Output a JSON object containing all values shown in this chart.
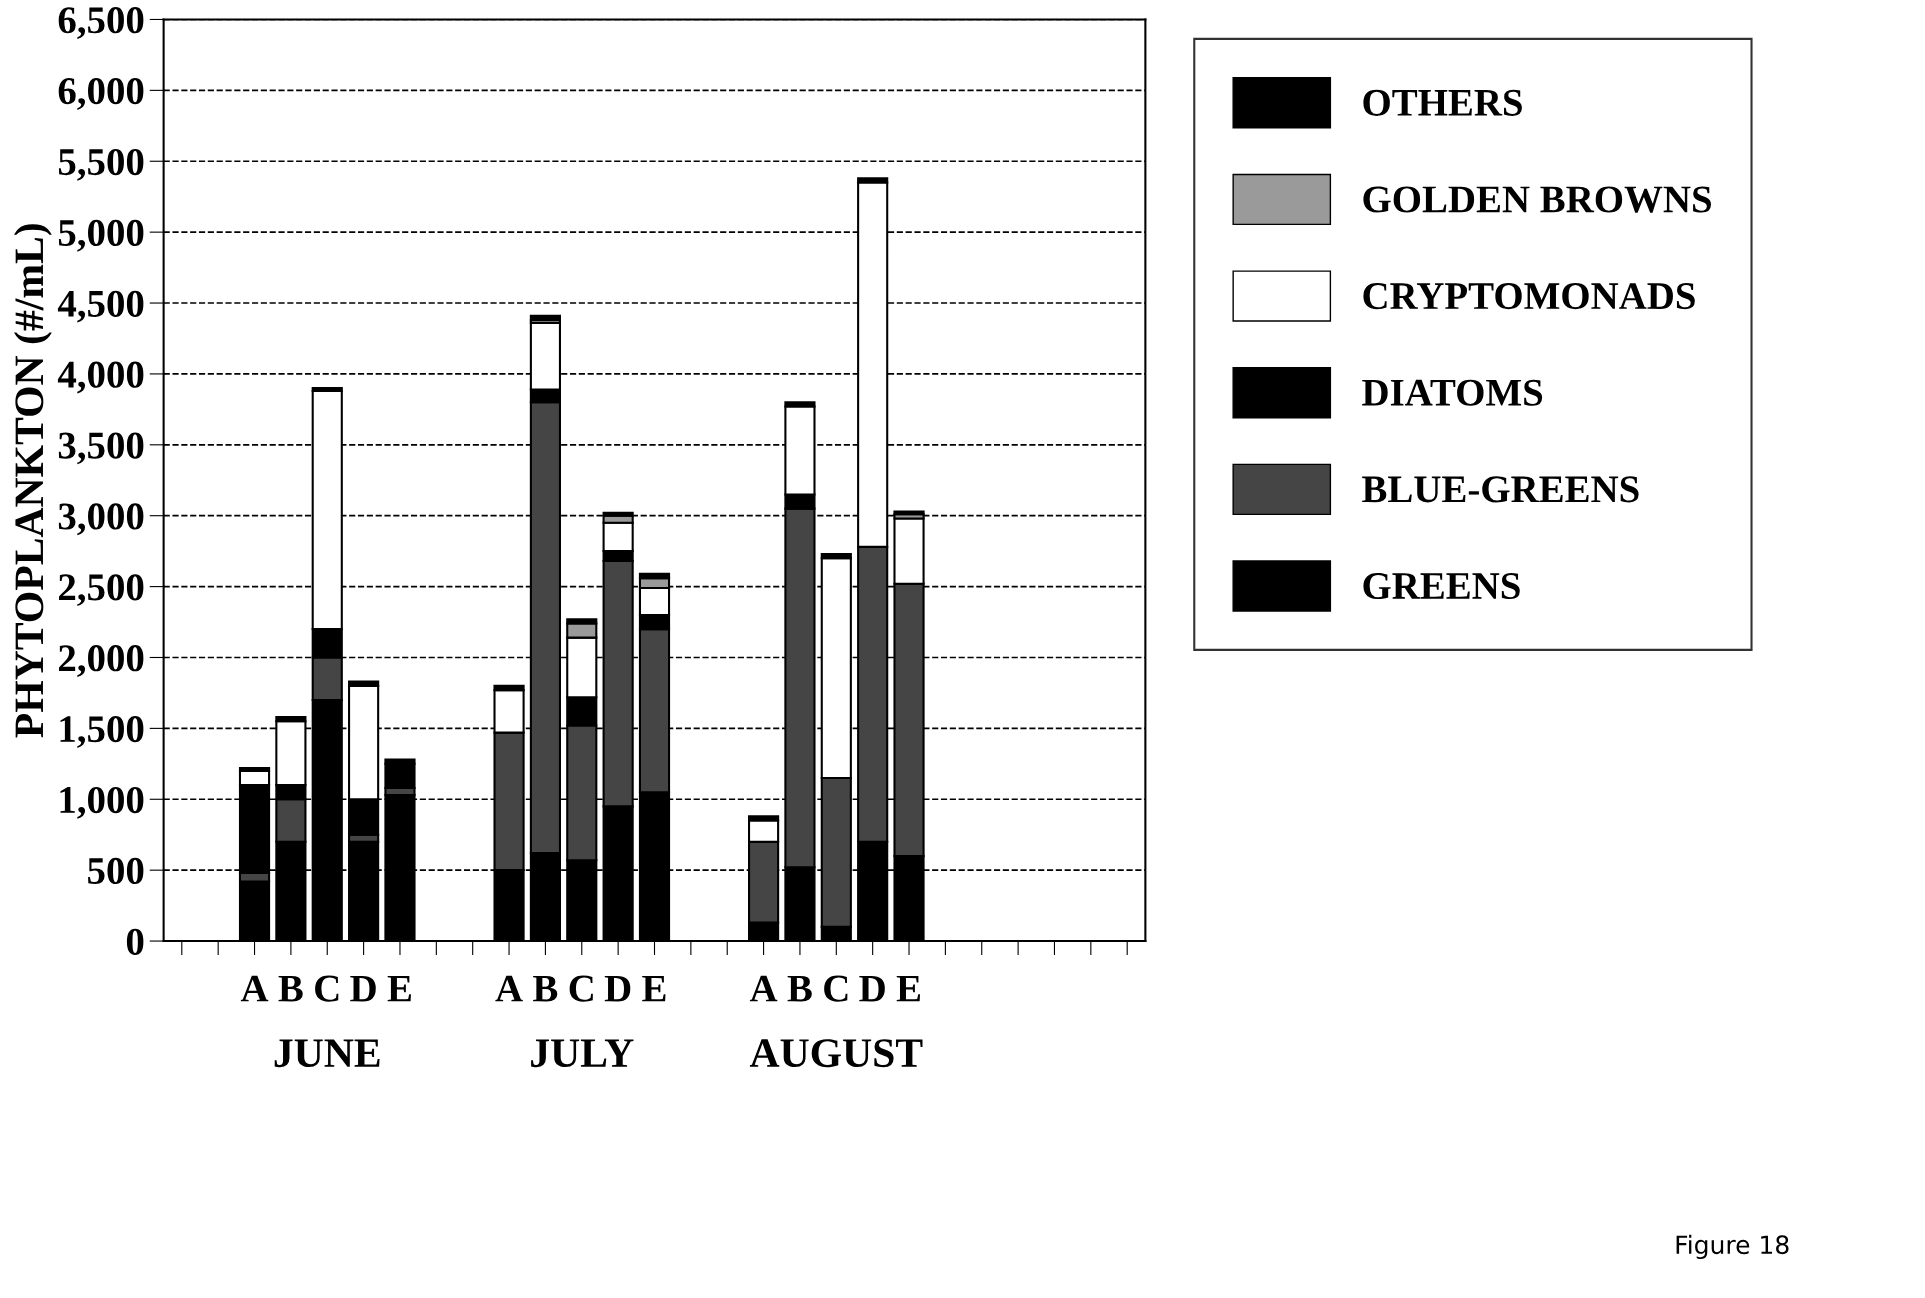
{
  "chart_data": {
    "type": "bar",
    "stacked": true,
    "ylabel": "PHYTOPLANKTON (#/mL)",
    "categories": [
      null,
      null,
      "A",
      "B",
      "C",
      "D",
      "E",
      null,
      null,
      "A",
      "B",
      "C",
      "D",
      "E",
      null,
      null,
      "A",
      "B",
      "C",
      "D",
      "E",
      null,
      null,
      null,
      null,
      null,
      null
    ],
    "series": [
      {
        "name": "GREENS",
        "color": "#000000",
        "values": [
          null,
          null,
          420,
          700,
          1700,
          700,
          1030,
          null,
          null,
          500,
          620,
          570,
          950,
          1050,
          null,
          null,
          130,
          520,
          100,
          700,
          600,
          null,
          null,
          null,
          null,
          null,
          null
        ]
      },
      {
        "name": "BLUE-GREENS",
        "color": "#454545",
        "values": [
          null,
          null,
          60,
          300,
          300,
          50,
          50,
          null,
          null,
          970,
          3180,
          950,
          1730,
          1150,
          null,
          null,
          570,
          2530,
          1050,
          2080,
          1920,
          null,
          null,
          null,
          null,
          null,
          null
        ]
      },
      {
        "name": "DIATOMS",
        "color": "#000000",
        "values": [
          null,
          null,
          620,
          100,
          200,
          250,
          170,
          null,
          null,
          null,
          90,
          200,
          70,
          100,
          null,
          null,
          null,
          100,
          null,
          null,
          null,
          null,
          null,
          null,
          null,
          null,
          null
        ]
      },
      {
        "name": "CRYPTOMONADS",
        "color": "#ffffff",
        "values": [
          null,
          null,
          100,
          450,
          1680,
          800,
          null,
          null,
          null,
          300,
          470,
          420,
          200,
          190,
          null,
          null,
          150,
          620,
          1550,
          2570,
          460,
          null,
          null,
          null,
          null,
          null,
          null
        ]
      },
      {
        "name": "GOLDEN BROWNS",
        "color": "#9a9a9a",
        "values": [
          null,
          null,
          null,
          null,
          null,
          null,
          null,
          null,
          null,
          null,
          20,
          100,
          50,
          70,
          null,
          null,
          null,
          null,
          null,
          null,
          30,
          null,
          null,
          null,
          null,
          null,
          null
        ]
      },
      {
        "name": "OTHERS",
        "color": "#000000",
        "values": [
          null,
          null,
          20,
          30,
          20,
          30,
          30,
          null,
          null,
          30,
          30,
          30,
          20,
          30,
          null,
          null,
          30,
          30,
          30,
          30,
          20,
          null,
          null,
          null,
          null,
          null,
          null
        ]
      }
    ],
    "ylim": [
      0,
      6500
    ],
    "yticks": [
      0,
      500,
      {
        "value": 1000,
        "label": "1,000"
      },
      {
        "value": 1500,
        "label": "1,500"
      },
      {
        "value": 2000,
        "label": "2,000"
      },
      {
        "value": 2500,
        "label": "2,500"
      },
      {
        "value": 3000,
        "label": "3,000"
      },
      {
        "value": 3500,
        "label": "3,500"
      },
      {
        "value": 4000,
        "label": "4,000"
      },
      {
        "value": 4500,
        "label": "4,500"
      },
      {
        "value": 5000,
        "label": "5,000"
      },
      {
        "value": 5500,
        "label": "5,500"
      },
      {
        "value": 6000,
        "label": "6,000"
      },
      {
        "value": 6500,
        "label": "6,500"
      }
    ],
    "grid": "y",
    "legend": "right",
    "line_style": "dashed",
    "annotations": [
      "JUNE",
      "JULY",
      "AUGUST",
      "Figure 18"
    ]
  }
}
